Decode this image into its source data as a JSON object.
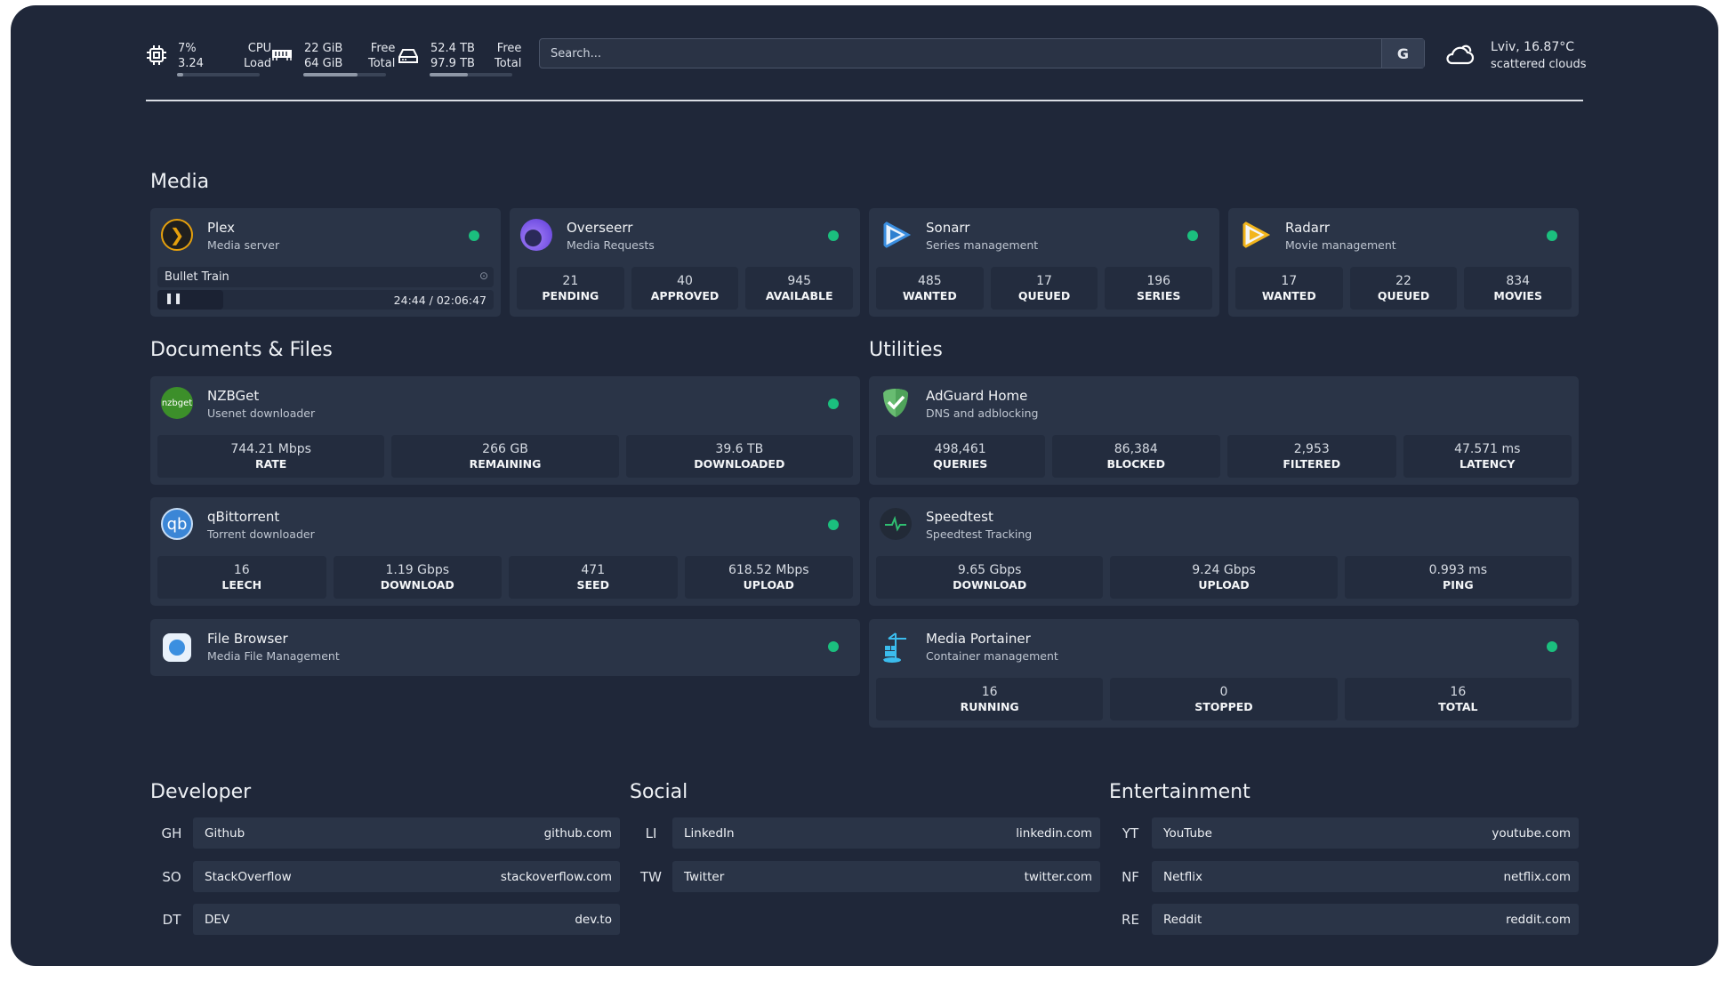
{
  "header": {
    "cpu": {
      "icon": "cpu-icon",
      "usage": "7%",
      "load": "3.24",
      "label1": "CPU",
      "label2": "Load",
      "fill": 0.07
    },
    "memory": {
      "icon": "memory-icon",
      "free": "22 GiB",
      "total": "64 GiB",
      "label1": "Free",
      "label2": "Total",
      "fill": 0.66
    },
    "disk": {
      "icon": "disk-icon",
      "free": "52.4 TB",
      "total": "97.9 TB",
      "label1": "Free",
      "label2": "Total",
      "fill": 0.46
    },
    "search": {
      "placeholder": "Search...",
      "engine": "G"
    },
    "weather": {
      "icon": "cloud-icon",
      "location": "Lviv, 16.87°C",
      "condition": "scattered clouds"
    }
  },
  "media": {
    "title": "Media",
    "services": [
      {
        "name": "Plex",
        "desc": "Media server",
        "icon": "plex-icon",
        "now_playing": {
          "title": "Bullet Train",
          "time": "24:44 / 02:06:47",
          "progress": 0.195
        }
      },
      {
        "name": "Overseerr",
        "desc": "Media Requests",
        "icon": "overseerr-icon",
        "fields": [
          {
            "v": "21",
            "l": "PENDING"
          },
          {
            "v": "40",
            "l": "APPROVED"
          },
          {
            "v": "945",
            "l": "AVAILABLE"
          }
        ]
      },
      {
        "name": "Sonarr",
        "desc": "Series management",
        "icon": "sonarr-icon",
        "fields": [
          {
            "v": "485",
            "l": "WANTED"
          },
          {
            "v": "17",
            "l": "QUEUED"
          },
          {
            "v": "196",
            "l": "SERIES"
          }
        ]
      },
      {
        "name": "Radarr",
        "desc": "Movie management",
        "icon": "radarr-icon",
        "fields": [
          {
            "v": "17",
            "l": "WANTED"
          },
          {
            "v": "22",
            "l": "QUEUED"
          },
          {
            "v": "834",
            "l": "MOVIES"
          }
        ]
      }
    ]
  },
  "docs": {
    "title": "Documents & Files",
    "services": [
      {
        "name": "NZBGet",
        "desc": "Usenet downloader",
        "icon_text": "nzbget",
        "fields": [
          {
            "v": "744.21 Mbps",
            "l": "RATE"
          },
          {
            "v": "266 GB",
            "l": "REMAINING"
          },
          {
            "v": "39.6 TB",
            "l": "DOWNLOADED"
          }
        ]
      },
      {
        "name": "qBittorrent",
        "desc": "Torrent downloader",
        "icon_text": "qb",
        "fields": [
          {
            "v": "16",
            "l": "LEECH"
          },
          {
            "v": "1.19 Gbps",
            "l": "DOWNLOAD"
          },
          {
            "v": "471",
            "l": "SEED"
          },
          {
            "v": "618.52 Mbps",
            "l": "UPLOAD"
          }
        ]
      },
      {
        "name": "File Browser",
        "desc": "Media File Management",
        "icon": "filebrowser-icon"
      }
    ]
  },
  "utilities": {
    "title": "Utilities",
    "services": [
      {
        "name": "AdGuard Home",
        "desc": "DNS and adblocking",
        "icon": "adguard-shield-icon",
        "fields": [
          {
            "v": "498,461",
            "l": "QUERIES"
          },
          {
            "v": "86,384",
            "l": "BLOCKED"
          },
          {
            "v": "2,953",
            "l": "FILTERED"
          },
          {
            "v": "47.571 ms",
            "l": "LATENCY"
          }
        ]
      },
      {
        "name": "Speedtest",
        "desc": "Speedtest Tracking",
        "icon": "speedtest-icon",
        "fields": [
          {
            "v": "9.65 Gbps",
            "l": "DOWNLOAD"
          },
          {
            "v": "9.24 Gbps",
            "l": "UPLOAD"
          },
          {
            "v": "0.993 ms",
            "l": "PING"
          }
        ]
      },
      {
        "name": "Media Portainer",
        "desc": "Container management",
        "icon": "portainer-icon",
        "fields": [
          {
            "v": "16",
            "l": "RUNNING"
          },
          {
            "v": "0",
            "l": "STOPPED"
          },
          {
            "v": "16",
            "l": "TOTAL"
          }
        ]
      }
    ]
  },
  "status_color": "#1bbf7e",
  "bookmarks": [
    {
      "title": "Developer",
      "items": [
        {
          "ab": "GH",
          "name": "Github",
          "url": "github.com"
        },
        {
          "ab": "SO",
          "name": "StackOverflow",
          "url": "stackoverflow.com"
        },
        {
          "ab": "DT",
          "name": "DEV",
          "url": "dev.to"
        }
      ]
    },
    {
      "title": "Social",
      "items": [
        {
          "ab": "LI",
          "name": "LinkedIn",
          "url": "linkedin.com"
        },
        {
          "ab": "TW",
          "name": "Twitter",
          "url": "twitter.com"
        }
      ]
    },
    {
      "title": "Entertainment",
      "items": [
        {
          "ab": "YT",
          "name": "YouTube",
          "url": "youtube.com"
        },
        {
          "ab": "NF",
          "name": "Netflix",
          "url": "netflix.com"
        },
        {
          "ab": "RE",
          "name": "Reddit",
          "url": "reddit.com"
        }
      ]
    }
  ]
}
